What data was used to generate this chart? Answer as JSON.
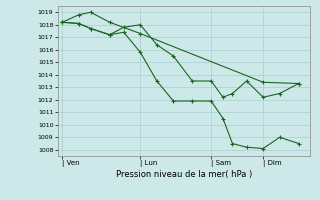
{
  "xlabel": "Pression niveau de la mer( hPa )",
  "bg_color": "#cce8e8",
  "grid_color": "#aacece",
  "line_color": "#1a6620",
  "ylim": [
    1007.5,
    1019.5
  ],
  "yticks": [
    1008,
    1009,
    1010,
    1011,
    1012,
    1013,
    1014,
    1015,
    1016,
    1017,
    1018,
    1019
  ],
  "xtick_labels": [
    "| Ven",
    "| Lun",
    "| Sam",
    "| Dim"
  ],
  "xtick_pos": [
    0.0,
    0.33,
    0.63,
    0.85
  ],
  "line1_x": [
    0.0,
    0.07,
    0.12,
    0.2,
    0.33,
    0.85,
    1.0
  ],
  "line1_y": [
    1018.2,
    1018.8,
    1019.0,
    1018.2,
    1017.3,
    1013.4,
    1013.3
  ],
  "line2_x": [
    0.0,
    0.07,
    0.12,
    0.2,
    0.26,
    0.33,
    0.4,
    0.47,
    0.55,
    0.63,
    0.68,
    0.72,
    0.78,
    0.85,
    0.92,
    1.0
  ],
  "line2_y": [
    1018.2,
    1018.1,
    1017.7,
    1017.2,
    1017.8,
    1018.0,
    1016.4,
    1015.5,
    1013.5,
    1013.5,
    1012.2,
    1012.5,
    1013.5,
    1012.2,
    1012.5,
    1013.3
  ],
  "line3_x": [
    0.0,
    0.07,
    0.12,
    0.2,
    0.26,
    0.33,
    0.4,
    0.47,
    0.55,
    0.63,
    0.68,
    0.72,
    0.78,
    0.85,
    0.92,
    1.0
  ],
  "line3_y": [
    1018.2,
    1018.1,
    1017.7,
    1017.2,
    1017.4,
    1015.8,
    1013.5,
    1011.9,
    1011.9,
    1011.9,
    1010.5,
    1008.5,
    1008.2,
    1008.1,
    1009.0,
    1008.5
  ]
}
